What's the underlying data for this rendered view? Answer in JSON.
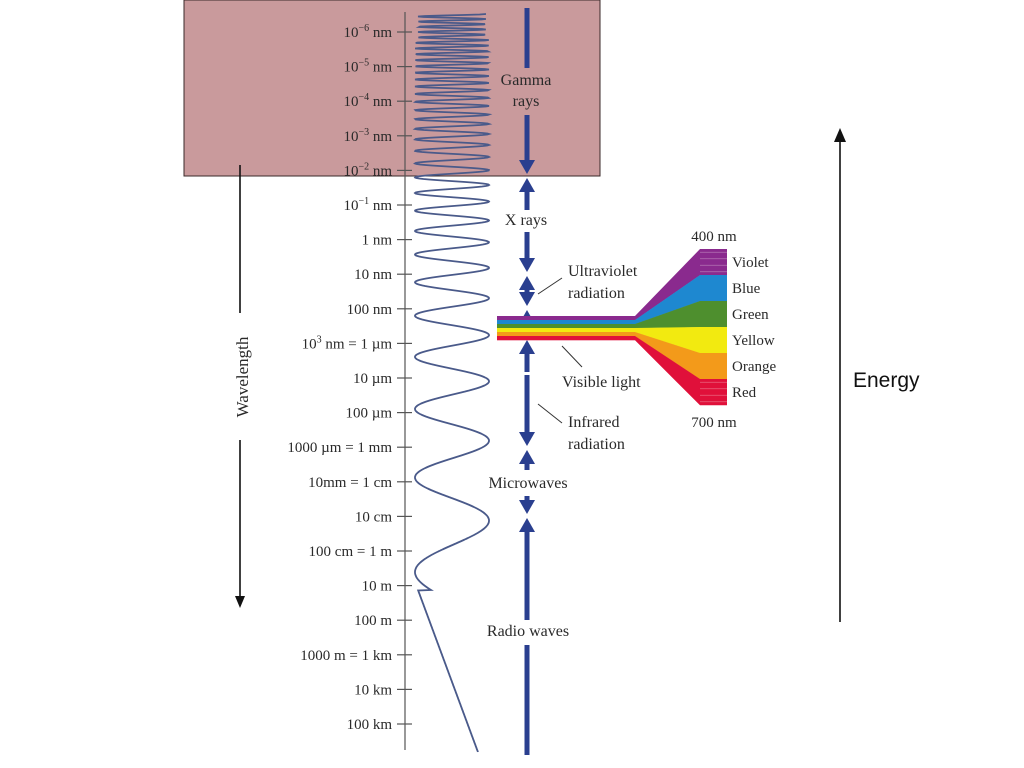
{
  "diagram": {
    "axis_title": "Wavelength",
    "energy_label": "Energy",
    "wavelength_ticks": [
      {
        "sup_base": "10",
        "sup_exp": "−6",
        "suffix": " nm"
      },
      {
        "sup_base": "10",
        "sup_exp": "−5",
        "suffix": " nm"
      },
      {
        "sup_base": "10",
        "sup_exp": "−4",
        "suffix": " nm"
      },
      {
        "sup_base": "10",
        "sup_exp": "−3",
        "suffix": " nm"
      },
      {
        "sup_base": "10",
        "sup_exp": "−2",
        "suffix": " nm"
      },
      {
        "sup_base": "10",
        "sup_exp": "−1",
        "suffix": " nm"
      },
      {
        "text": "1 nm"
      },
      {
        "text": "10 nm"
      },
      {
        "text": "100 nm"
      },
      {
        "sup_base": "10",
        "sup_exp": "3",
        "suffix": " nm = 1 µm"
      },
      {
        "text": "10 µm"
      },
      {
        "text": "100 µm"
      },
      {
        "text": "1000 µm = 1 mm"
      },
      {
        "text": "10mm = 1 cm"
      },
      {
        "text": "10 cm"
      },
      {
        "text": "100 cm = 1 m"
      },
      {
        "text": "10 m"
      },
      {
        "text": "100 m"
      },
      {
        "text": "1000 m = 1 km"
      },
      {
        "text": "10 km"
      },
      {
        "text": "100 km"
      }
    ],
    "regions": {
      "gamma_line1": "Gamma",
      "gamma_line2": "rays",
      "xrays": "X rays",
      "uv_line1": "Ultraviolet",
      "uv_line2": "radiation",
      "visible": "Visible light",
      "ir_line1": "Infrared",
      "ir_line2": "radiation",
      "microwaves": "Microwaves",
      "radio": "Radio waves"
    },
    "visible_spectrum": {
      "top_label": "400 nm",
      "bottom_label": "700 nm",
      "bands": [
        {
          "name": "Violet",
          "color": "#8a2a8e"
        },
        {
          "name": "Blue",
          "color": "#1e88d0"
        },
        {
          "name": "Green",
          "color": "#4e8f2e"
        },
        {
          "name": "Yellow",
          "color": "#f2ea10"
        },
        {
          "name": "Orange",
          "color": "#f39a1a"
        },
        {
          "name": "Red",
          "color": "#e0103a"
        }
      ]
    },
    "colors": {
      "highlight_fill": "#c99a9c",
      "highlight_border": "#3a2a2a",
      "axis_blue": "#2a3f8f",
      "wave": "#4a5a8a",
      "text": "#2a2a2a"
    }
  }
}
